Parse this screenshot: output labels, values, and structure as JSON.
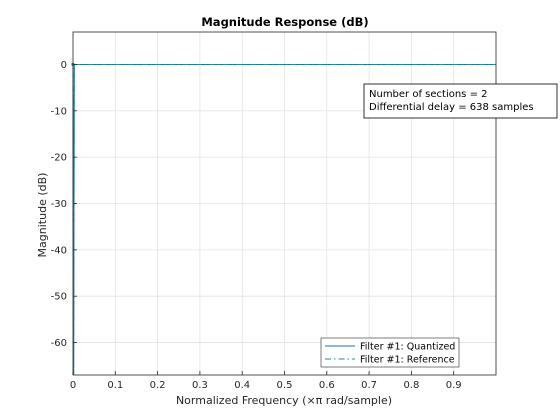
{
  "chart_data": {
    "type": "line",
    "title": "Magnitude Response (dB)",
    "xlabel": "Normalized Frequency (×π rad/sample)",
    "ylabel": "Magnitude (dB)",
    "xlim": [
      0,
      1
    ],
    "ylim": [
      -67,
      7
    ],
    "xticks": [
      "0",
      "0.1",
      "0.2",
      "0.3",
      "0.4",
      "0.5",
      "0.6",
      "0.7",
      "0.8",
      "0.9"
    ],
    "yticks": [
      "0",
      "-10",
      "-20",
      "-30",
      "-40",
      "-50",
      "-60"
    ],
    "grid": true,
    "legend_location": "bottom-right",
    "annotation": [
      "Number of sections = 2",
      "Differential delay = 638 samples"
    ],
    "series": [
      {
        "name": "Filter #1: Quantized",
        "style": "solid",
        "color": "#1f6fa5",
        "x": [
          0,
          0.0016,
          0.0031,
          0.1,
          0.2,
          0.3,
          0.4,
          0.5,
          0.6,
          0.7,
          0.8,
          0.9,
          1.0
        ],
        "y": [
          0,
          -67,
          0,
          0,
          0,
          0,
          0,
          0,
          0,
          0,
          0,
          0,
          0
        ]
      },
      {
        "name": "Filter #1: Reference",
        "style": "dashdot",
        "color": "#1f8f8f",
        "x": [
          0,
          0.0016,
          0.0031,
          0.1,
          0.2,
          0.3,
          0.4,
          0.5,
          0.6,
          0.7,
          0.8,
          0.9,
          1.0
        ],
        "y": [
          0,
          -67,
          0,
          0,
          0,
          0,
          0,
          0,
          0,
          0,
          0,
          0,
          0
        ]
      }
    ]
  }
}
